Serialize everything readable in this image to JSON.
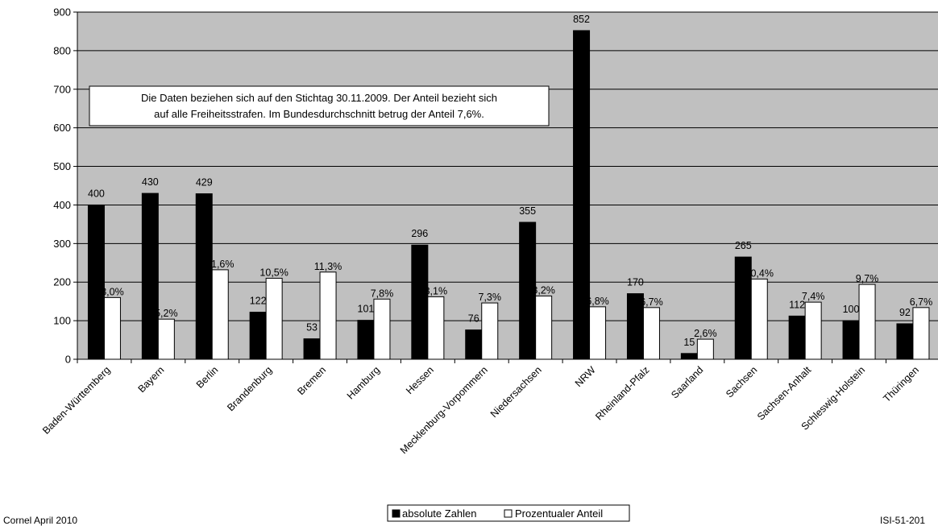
{
  "chart_data": {
    "type": "bar",
    "categories": [
      "Baden-Württemberg",
      "Bayern",
      "Berlin",
      "Brandenburg",
      "Bremen",
      "Hamburg",
      "Hessen",
      "Mecklenburg-Vorpommern",
      "Niedersachsen",
      "NRW",
      "Rheinland-Pfalz",
      "Saarland",
      "Sachsen",
      "Sachsen-Anhalt",
      "Schleswig-Holstein",
      "Thüringen"
    ],
    "series": [
      {
        "name": "absolute Zahlen",
        "color": "#000000",
        "values": [
          400,
          430,
          429,
          122,
          53,
          101,
          296,
          76,
          355,
          852,
          170,
          15,
          265,
          112,
          100,
          92
        ],
        "labels": [
          "400",
          "430",
          "429",
          "122",
          "53",
          "101",
          "296",
          "76",
          "355",
          "852",
          "170",
          "15",
          "265",
          "112",
          "100",
          "92"
        ]
      },
      {
        "name": "Prozentualer Anteil",
        "color": "#ffffff",
        "percent": [
          8.0,
          5.2,
          11.6,
          10.5,
          11.3,
          7.8,
          8.1,
          7.3,
          8.2,
          6.8,
          6.7,
          2.6,
          10.4,
          7.4,
          9.7,
          6.7
        ],
        "labels": [
          "8,0%",
          "5,2%",
          "11,6%",
          "10,5%",
          "11,3%",
          "7,8%",
          "8,1%",
          "7,3%",
          "8,2%",
          "6,8%",
          "6,7%",
          "2,6%",
          "10,4%",
          "7,4%",
          "9,7%",
          "6,7%"
        ]
      }
    ],
    "ylim": [
      0,
      900
    ],
    "yticks": [
      0,
      100,
      200,
      300,
      400,
      500,
      600,
      700,
      800,
      900
    ],
    "grid": true,
    "plot_background": "#c0c0c0",
    "annotation": {
      "line1": "Die Daten beziehen sich auf den Stichtag 30.11.2009. Der Anteil bezieht sich",
      "line2": "auf alle Freiheitsstrafen. Im Bundesdurchschnitt betrug der Anteil 7,6%."
    },
    "legend_placement": "bottom-center"
  },
  "footer": {
    "left": "Cornel April 2010",
    "right": "ISI-51-201"
  }
}
